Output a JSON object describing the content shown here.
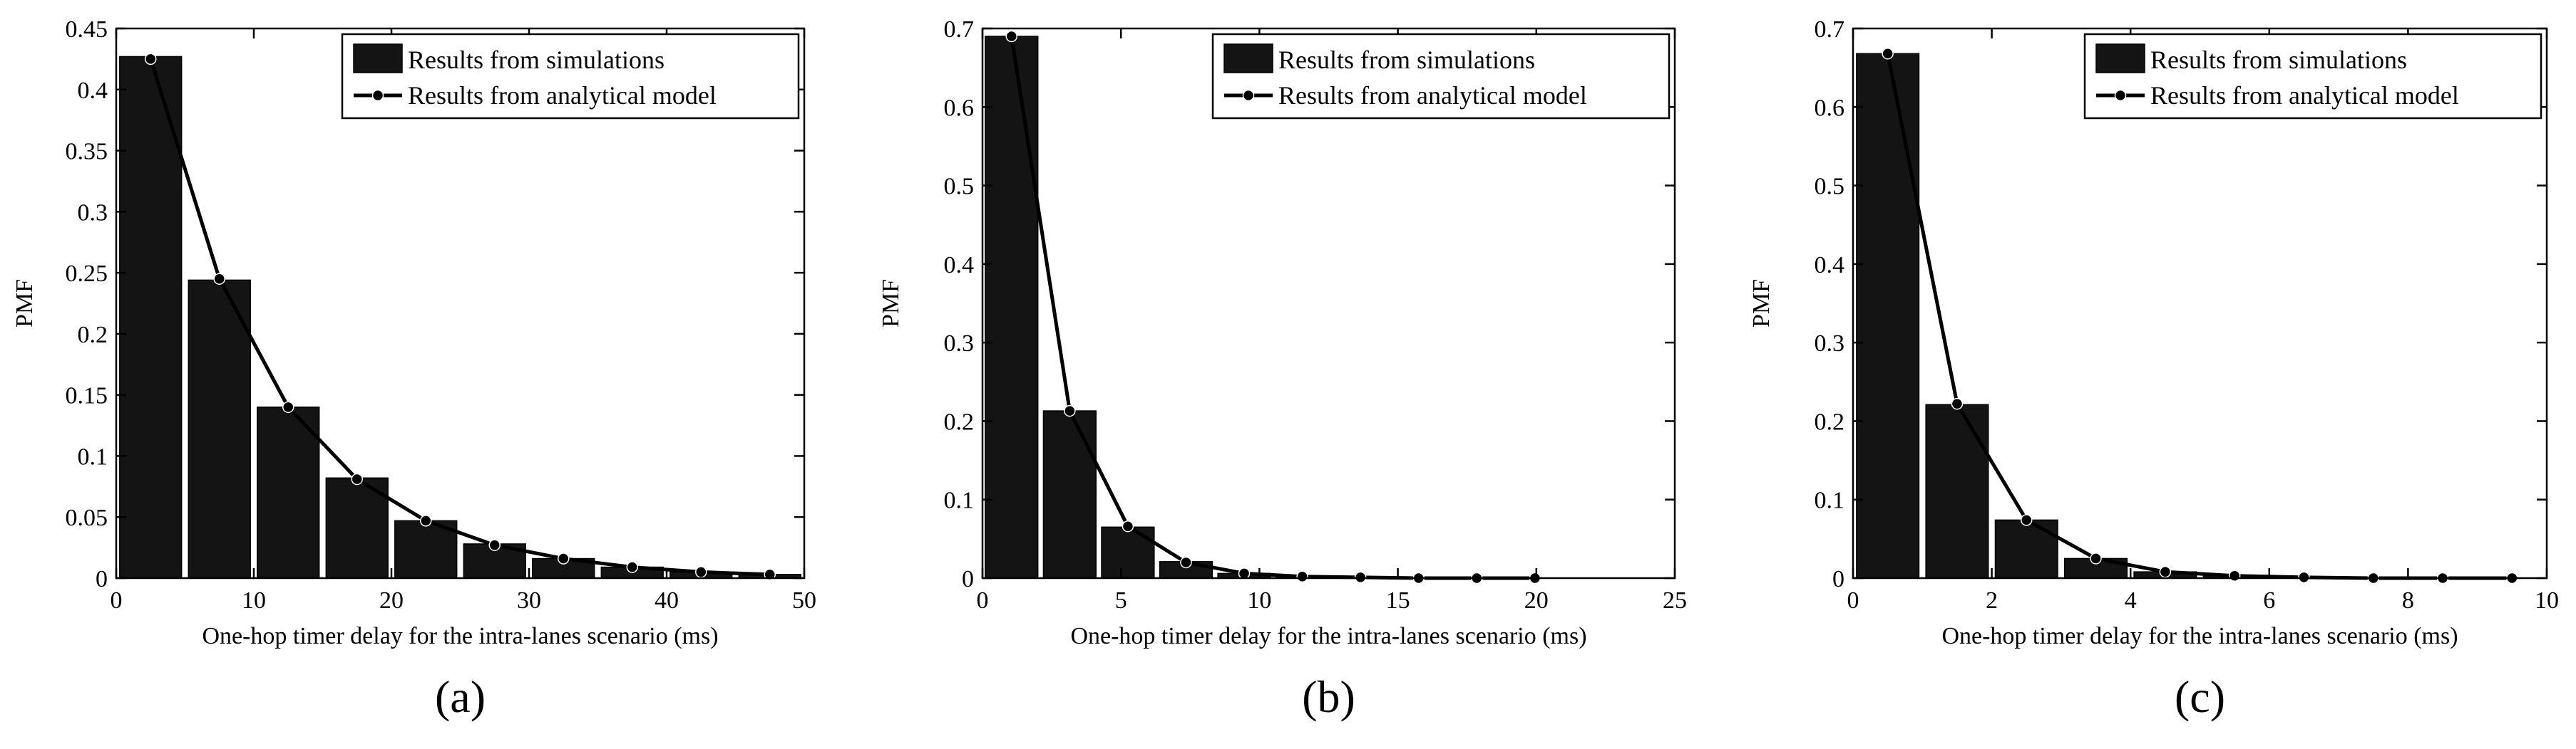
{
  "chart_data": [
    {
      "type": "bar",
      "panel_label": "(a)",
      "xlabel": "One-hop timer delay for the intra-lanes scenario (ms)",
      "ylabel": "PMF",
      "xlim": [
        0,
        50
      ],
      "ylim": [
        0,
        0.45
      ],
      "xticks": [
        0,
        10,
        20,
        30,
        40,
        50
      ],
      "yticks": [
        0,
        0.05,
        0.1,
        0.15,
        0.2,
        0.25,
        0.3,
        0.35,
        0.4,
        0.45
      ],
      "ytick_labels": [
        "0",
        "0.05",
        "0.1",
        "0.15",
        "0.2",
        "0.25",
        "0.3",
        "0.35",
        "0.4",
        "0.45"
      ],
      "bar_width": 4.5,
      "legend_position": "top-right",
      "series": [
        {
          "name": "Results from simulations",
          "kind": "bar",
          "x": [
            2.5,
            7.5,
            12.5,
            17.5,
            22.5,
            27.5,
            32.5,
            37.5,
            42.5,
            47.5
          ],
          "values": [
            0.427,
            0.244,
            0.14,
            0.082,
            0.047,
            0.028,
            0.016,
            0.009,
            0.005,
            0.003
          ]
        },
        {
          "name": "Results from analytical model",
          "kind": "line",
          "x": [
            2.5,
            7.5,
            12.5,
            17.5,
            22.5,
            27.5,
            32.5,
            37.5,
            42.5,
            47.5
          ],
          "values": [
            0.425,
            0.245,
            0.14,
            0.081,
            0.047,
            0.027,
            0.016,
            0.009,
            0.005,
            0.003
          ]
        }
      ]
    },
    {
      "type": "bar",
      "panel_label": "(b)",
      "xlabel": "One-hop timer delay for the intra-lanes scenario (ms)",
      "ylabel": "PMF",
      "xlim": [
        0,
        25
      ],
      "ylim": [
        0,
        0.7
      ],
      "xticks": [
        0,
        5,
        10,
        15,
        20,
        25
      ],
      "yticks": [
        0,
        0.1,
        0.2,
        0.3,
        0.4,
        0.5,
        0.6,
        0.7
      ],
      "ytick_labels": [
        "0",
        "0.1",
        "0.2",
        "0.3",
        "0.4",
        "0.5",
        "0.6",
        "0.7"
      ],
      "bar_width": 1.9,
      "legend_position": "top-right",
      "series": [
        {
          "name": "Results from simulations",
          "kind": "bar",
          "x": [
            1.05,
            3.15,
            5.25,
            7.35,
            9.45,
            11.55,
            13.65,
            15.75,
            17.85,
            19.95
          ],
          "values": [
            0.69,
            0.213,
            0.065,
            0.021,
            0.006,
            0.002,
            0.001,
            0.0,
            0.0,
            0.0
          ]
        },
        {
          "name": "Results from analytical model",
          "kind": "line",
          "x": [
            1.05,
            3.15,
            5.25,
            7.35,
            9.45,
            11.55,
            13.65,
            15.75,
            17.85,
            19.95
          ],
          "values": [
            0.69,
            0.213,
            0.066,
            0.02,
            0.006,
            0.002,
            0.001,
            0.0,
            0.0,
            0.0
          ]
        }
      ]
    },
    {
      "type": "bar",
      "panel_label": "(c)",
      "xlabel": "One-hop timer delay for the intra-lanes scenario (ms)",
      "ylabel": "PMF",
      "xlim": [
        0,
        10
      ],
      "ylim": [
        0,
        0.7
      ],
      "xticks": [
        0,
        2,
        4,
        6,
        8,
        10
      ],
      "yticks": [
        0,
        0.1,
        0.2,
        0.3,
        0.4,
        0.5,
        0.6,
        0.7
      ],
      "ytick_labels": [
        "0",
        "0.1",
        "0.2",
        "0.3",
        "0.4",
        "0.5",
        "0.6",
        "0.7"
      ],
      "bar_width": 0.9,
      "legend_position": "top-right",
      "series": [
        {
          "name": "Results from simulations",
          "kind": "bar",
          "x": [
            0.5,
            1.5,
            2.5,
            3.5,
            4.5,
            5.5,
            6.5,
            7.5,
            8.5,
            9.5
          ],
          "values": [
            0.668,
            0.221,
            0.074,
            0.025,
            0.008,
            0.003,
            0.001,
            0.0,
            0.0,
            0.0
          ]
        },
        {
          "name": "Results from analytical model",
          "kind": "line",
          "x": [
            0.5,
            1.5,
            2.5,
            3.5,
            4.5,
            5.5,
            6.5,
            7.5,
            8.5,
            9.5
          ],
          "values": [
            0.668,
            0.222,
            0.074,
            0.025,
            0.008,
            0.003,
            0.001,
            0.0,
            0.0,
            0.0
          ]
        }
      ]
    }
  ],
  "colors": {
    "bar_fill": "#141414",
    "line": "#000000",
    "axes": "#000000",
    "background": "#ffffff"
  }
}
